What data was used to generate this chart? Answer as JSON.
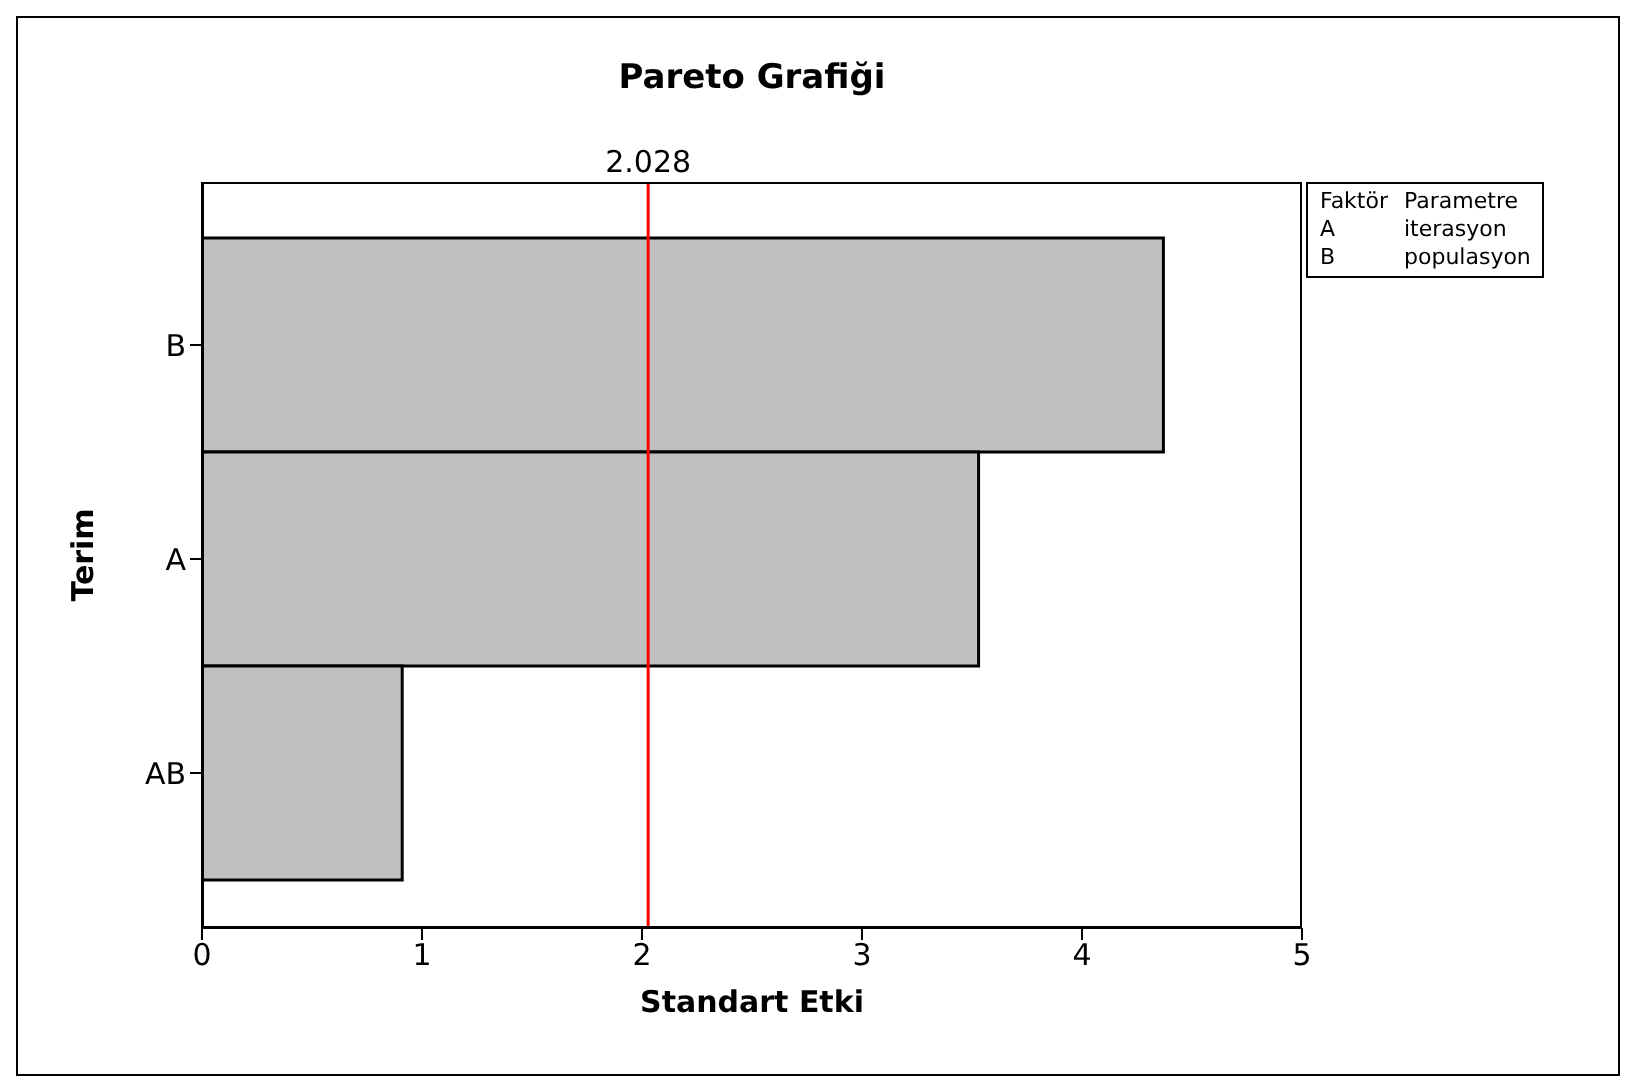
{
  "chart_data": {
    "type": "bar",
    "orientation": "horizontal",
    "title": "Pareto Grafiği",
    "xlabel": "Standart Etki",
    "ylabel": "Terim",
    "categories": [
      "B",
      "A",
      "AB"
    ],
    "series": [
      {
        "color": "#c0c0c0",
        "values": [
          4.37,
          3.53,
          0.91
        ]
      }
    ],
    "xlim": [
      0,
      5
    ],
    "xticks": [
      0,
      1,
      2,
      3,
      4,
      5
    ],
    "ref_lines": [
      {
        "axis": "x",
        "value": 2.028,
        "label": "2.028",
        "color": "#ff0000"
      }
    ],
    "annotations": [
      "Faktör",
      "Parametre",
      "A",
      "iterasyon",
      "B",
      "populasyon"
    ]
  }
}
